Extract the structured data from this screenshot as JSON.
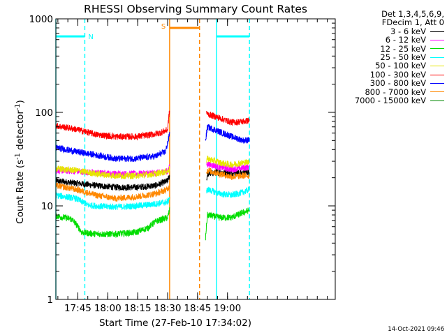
{
  "chart_data": {
    "type": "line",
    "title": "RHESSI Observing Summary Count Rates",
    "xlabel": "Start Time (27-Feb-10 17:34:02)",
    "ylabel_main": "Count Rate (s",
    "ylabel_sup1": "-1",
    "ylabel_mid": " detector",
    "ylabel_sup2": "-1",
    "ylabel_end": ")",
    "yscale": "log",
    "ylim": [
      1,
      1000
    ],
    "xlim": [
      0,
      140
    ],
    "x_unit": "minutes after 17:34:02",
    "x_ticks": [
      {
        "x": 11,
        "label": "17:45"
      },
      {
        "x": 26,
        "label": "18:00"
      },
      {
        "x": 41,
        "label": "18:15"
      },
      {
        "x": 56,
        "label": "18:30"
      },
      {
        "x": 71,
        "label": "18:45"
      },
      {
        "x": 86,
        "label": "19:00"
      }
    ],
    "y_ticks": [
      {
        "y": 1,
        "label": "1"
      },
      {
        "y": 10,
        "label": "10"
      },
      {
        "y": 100,
        "label": "100"
      },
      {
        "y": 1000,
        "label": "1000"
      }
    ],
    "legend": {
      "header_line1": "Det 1,3,4,5,6,9,",
      "header_line2": "FDecim 1, Att 0",
      "placement": "outside-right"
    },
    "series": [
      {
        "name": "3 - 6 keV",
        "color": "#000000",
        "before": [
          [
            0,
            18.5
          ],
          [
            10,
            17.5
          ],
          [
            20,
            16.5
          ],
          [
            30,
            15.8
          ],
          [
            40,
            15.8
          ],
          [
            50,
            16.5
          ],
          [
            56,
            18.5
          ],
          [
            57,
            21
          ]
        ],
        "after": [
          [
            75.5,
            19
          ],
          [
            76,
            22
          ],
          [
            82,
            23
          ],
          [
            88,
            22.5
          ],
          [
            94,
            22.5
          ],
          [
            97,
            23
          ]
        ]
      },
      {
        "name": "6 - 12 keV",
        "color": "#ff00ff",
        "before": [
          [
            0,
            24
          ],
          [
            10,
            23.5
          ],
          [
            20,
            22.5
          ],
          [
            30,
            22
          ],
          [
            40,
            22
          ],
          [
            50,
            22.5
          ],
          [
            56,
            23.5
          ],
          [
            57,
            26
          ]
        ],
        "after": [
          [
            75.5,
            28
          ],
          [
            76,
            28
          ],
          [
            82,
            26
          ],
          [
            88,
            24.5
          ],
          [
            94,
            25.5
          ],
          [
            97,
            26
          ]
        ]
      },
      {
        "name": "12 - 25 keV",
        "color": "#00dd00",
        "before": [
          [
            0,
            7.8
          ],
          [
            8,
            7.2
          ],
          [
            13,
            5.2
          ],
          [
            20,
            5
          ],
          [
            30,
            5
          ],
          [
            40,
            5.2
          ],
          [
            46,
            5.8
          ],
          [
            50,
            6.8
          ],
          [
            56,
            7.5
          ],
          [
            57,
            9
          ]
        ],
        "after": [
          [
            75,
            4.5
          ],
          [
            76,
            8
          ],
          [
            82,
            7.5
          ],
          [
            88,
            7.5
          ],
          [
            94,
            8.5
          ],
          [
            97,
            9
          ]
        ]
      },
      {
        "name": "25 - 50 keV",
        "color": "#00ffff",
        "before": [
          [
            0,
            13
          ],
          [
            10,
            12
          ],
          [
            16,
            10.2
          ],
          [
            25,
            9.8
          ],
          [
            35,
            9.8
          ],
          [
            45,
            10.2
          ],
          [
            50,
            10.5
          ],
          [
            56,
            11
          ],
          [
            57,
            12.5
          ]
        ],
        "after": [
          [
            75.5,
            14
          ],
          [
            76,
            15
          ],
          [
            82,
            13.5
          ],
          [
            88,
            13
          ],
          [
            94,
            14
          ],
          [
            97,
            15
          ]
        ]
      },
      {
        "name": "50 - 100 keV",
        "color": "#e6e600",
        "before": [
          [
            0,
            25
          ],
          [
            10,
            24
          ],
          [
            20,
            22
          ],
          [
            30,
            21
          ],
          [
            40,
            21
          ],
          [
            50,
            22
          ],
          [
            56,
            23.5
          ],
          [
            57,
            25
          ]
        ],
        "after": [
          [
            75.5,
            30
          ],
          [
            76,
            32
          ],
          [
            82,
            29
          ],
          [
            88,
            27.5
          ],
          [
            94,
            29
          ],
          [
            97,
            29.5
          ]
        ]
      },
      {
        "name": "100 - 300 keV",
        "color": "#ff0000",
        "before": [
          [
            0,
            72
          ],
          [
            10,
            66
          ],
          [
            20,
            58
          ],
          [
            30,
            55
          ],
          [
            40,
            55
          ],
          [
            46,
            57
          ],
          [
            52,
            60
          ],
          [
            56,
            65
          ],
          [
            57,
            105
          ]
        ],
        "after": [
          [
            75.5,
            100
          ],
          [
            76,
            96
          ],
          [
            82,
            87
          ],
          [
            88,
            78
          ],
          [
            94,
            80
          ],
          [
            97,
            82
          ]
        ]
      },
      {
        "name": "300 - 800 keV",
        "color": "#0000ff",
        "before": [
          [
            0,
            42
          ],
          [
            10,
            38
          ],
          [
            20,
            35
          ],
          [
            30,
            32
          ],
          [
            40,
            32
          ],
          [
            50,
            34
          ],
          [
            55,
            38
          ],
          [
            56.5,
            52
          ],
          [
            57,
            60
          ]
        ],
        "after": [
          [
            75,
            50
          ],
          [
            76,
            70
          ],
          [
            82,
            62
          ],
          [
            88,
            55
          ],
          [
            94,
            50
          ],
          [
            97,
            51
          ]
        ]
      },
      {
        "name": "800 - 7000 keV",
        "color": "#ff8800",
        "before": [
          [
            0,
            16.5
          ],
          [
            10,
            15
          ],
          [
            20,
            13
          ],
          [
            30,
            12
          ],
          [
            40,
            12.5
          ],
          [
            50,
            13.5
          ],
          [
            56,
            15
          ],
          [
            57,
            16.5
          ]
        ],
        "after": [
          [
            75.5,
            23
          ],
          [
            76,
            24
          ],
          [
            82,
            22
          ],
          [
            88,
            20.5
          ],
          [
            94,
            21
          ],
          [
            97,
            21
          ]
        ]
      },
      {
        "name": "7000 - 15000 keV",
        "color": "#008800",
        "before": [],
        "after": []
      }
    ],
    "flags": [
      {
        "label": "N",
        "color": "#00ffff",
        "level": 650,
        "segments": [
          [
            0,
            14.5
          ],
          [
            80.5,
            97
          ]
        ]
      },
      {
        "label": "S",
        "color": "#ff8800",
        "level": 800,
        "segments": [
          [
            57,
            72
          ]
        ]
      }
    ],
    "vlines": [
      {
        "x": 0,
        "color": "#00ffff",
        "style": "solid"
      },
      {
        "x": 14.5,
        "color": "#00ffff",
        "style": "dashed"
      },
      {
        "x": 57,
        "color": "#ff8800",
        "style": "solid"
      },
      {
        "x": 72,
        "color": "#ff8800",
        "style": "dashed"
      },
      {
        "x": 80.5,
        "color": "#00ffff",
        "style": "solid"
      },
      {
        "x": 97,
        "color": "#00ffff",
        "style": "dashed"
      }
    ]
  },
  "timestamp": "14-Oct-2021 09:46"
}
